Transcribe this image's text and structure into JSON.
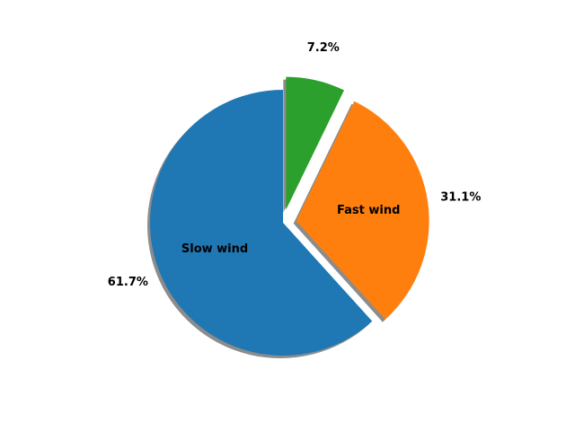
{
  "chart_data": {
    "type": "pie",
    "title": "",
    "slices": [
      {
        "label": "Slow wind",
        "value": 61.7,
        "percent_label": "61.7%",
        "color": "#1f77b4",
        "exploded": false,
        "show_name": true
      },
      {
        "label": "Fast wind",
        "value": 31.1,
        "percent_label": "31.1%",
        "color": "#ff7f0e",
        "exploded": true,
        "show_name": true
      },
      {
        "label": "",
        "value": 7.2,
        "percent_label": "7.2%",
        "color": "#2ca02c",
        "exploded": true,
        "show_name": false
      }
    ],
    "start_angle_deg": 90,
    "direction": "counterclockwise",
    "shadow": true,
    "legend": "none"
  }
}
